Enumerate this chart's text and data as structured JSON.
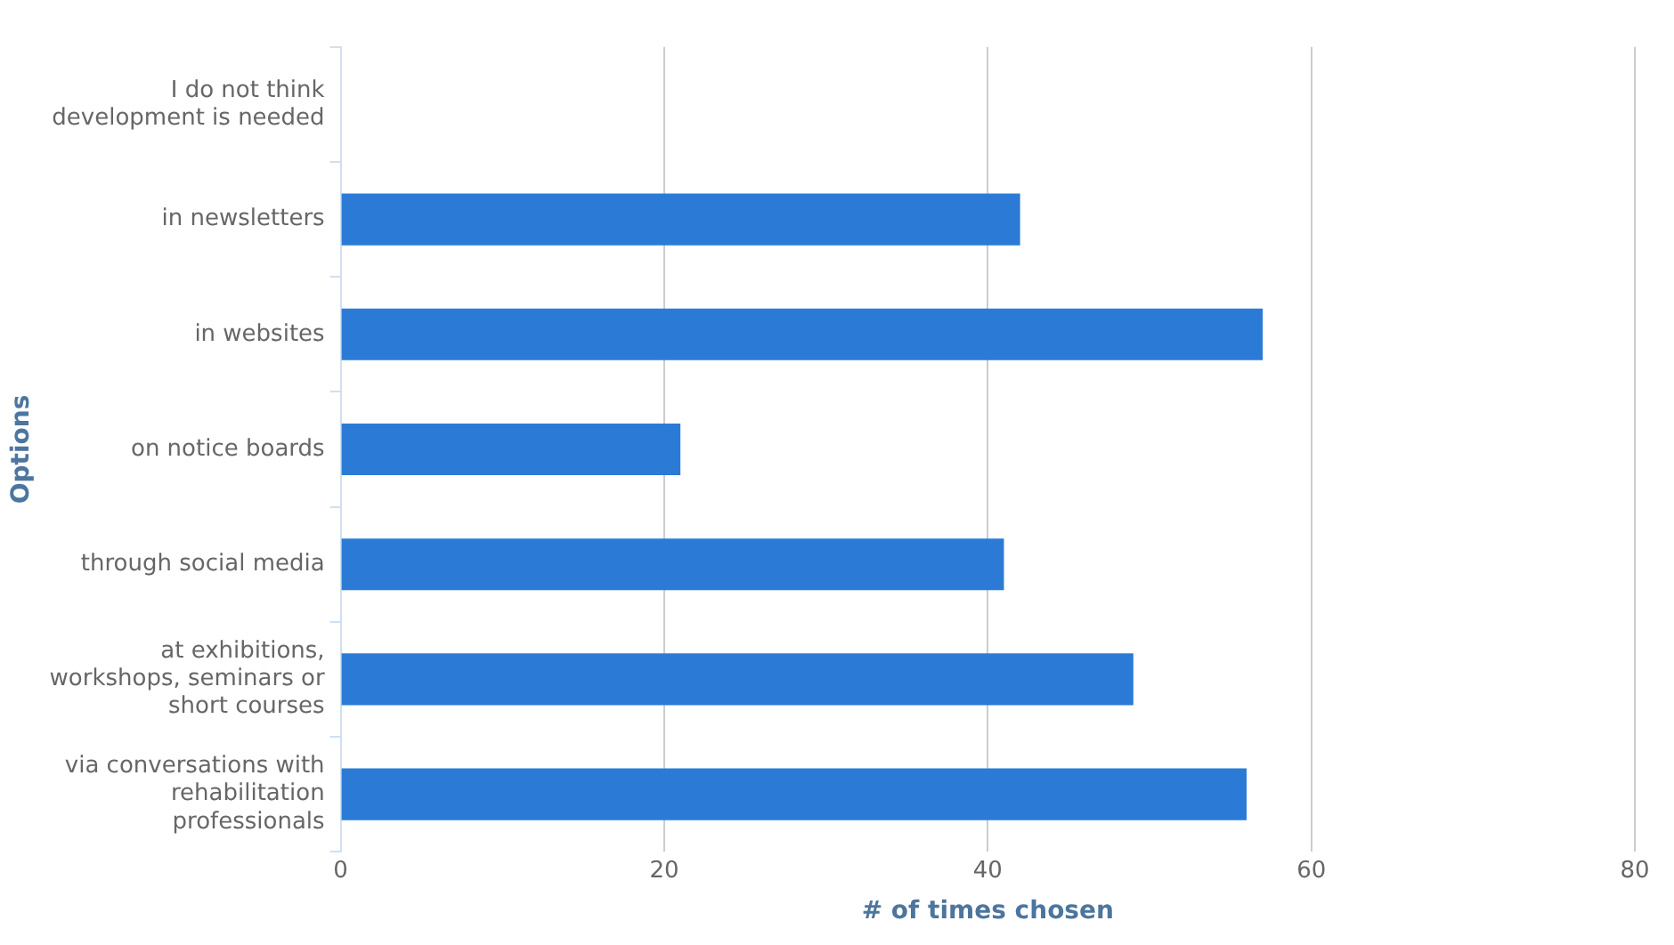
{
  "chart_data": {
    "type": "bar",
    "orientation": "horizontal",
    "xlabel": "# of times chosen",
    "ylabel": "Options",
    "categories": [
      "I do not think development is needed",
      "in newsletters",
      "in websites",
      "on notice boards",
      "through social media",
      "at exhibitions, workshops, seminars or short courses",
      "via conversations with rehabilitation professionals"
    ],
    "values": [
      0,
      42,
      57,
      21,
      41,
      49,
      56
    ],
    "color": "#2b7bd6",
    "xlim": [
      0,
      80
    ],
    "xticks": [
      0,
      20,
      40,
      60,
      80
    ],
    "grid": "x",
    "legend": false
  }
}
